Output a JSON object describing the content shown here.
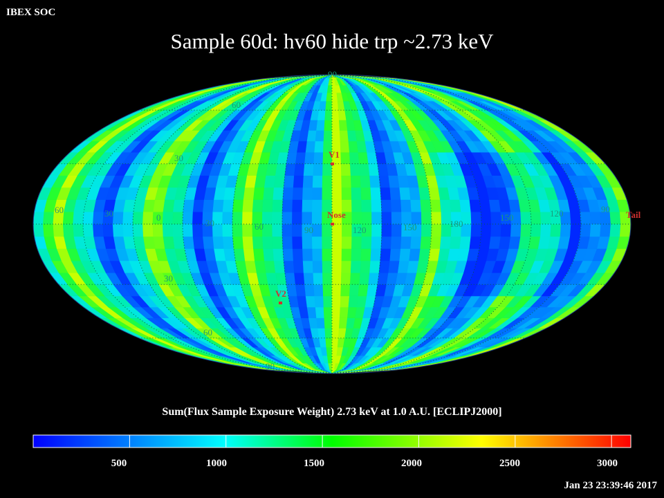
{
  "header": {
    "brand": "IBEX SOC",
    "title": "Sample 60d: hv60 hide trp ~2.73 keV"
  },
  "map": {
    "projection": "Mollweide",
    "frame": "ECLIPJ2000",
    "latitude_labels": [
      "60",
      "30",
      "30",
      "60",
      "90",
      "90"
    ],
    "longitude_labels": [
      "60",
      "30",
      "0",
      "30",
      "60",
      "90",
      "120",
      "150",
      "180",
      "150",
      "120",
      "90"
    ],
    "markers": [
      {
        "name": "V1",
        "label": "V1",
        "color": "#d03030"
      },
      {
        "name": "Nose",
        "label": "Nose",
        "color": "#d03030"
      },
      {
        "name": "V2",
        "label": "V2",
        "color": "#d03030"
      },
      {
        "name": "Tail",
        "label": "Tail",
        "color": "#d03030"
      }
    ],
    "colors": {
      "background": "#000000",
      "grid_label": "#1a9a7a",
      "marker": "#d03030"
    }
  },
  "colorbar": {
    "title": "Sum(Flux Sample Exposure Weight)  2.73 keV at 1.0 A.U. [ECLIPJ2000]",
    "ticks": [
      "500",
      "1000",
      "1500",
      "2000",
      "2500",
      "3000"
    ],
    "tick_values": [
      500,
      1000,
      1500,
      2000,
      2500,
      3000
    ],
    "range": [
      0,
      3100
    ],
    "stops": [
      "#0000ff",
      "#00ffff",
      "#00ff00",
      "#ffff00",
      "#ff0000"
    ]
  },
  "footer": {
    "timestamp": "Jan 23 23:39:46 2017"
  }
}
